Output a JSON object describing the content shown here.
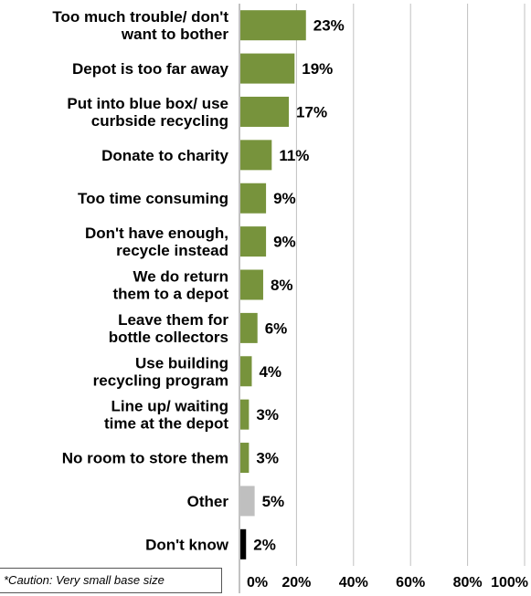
{
  "chart_data": {
    "type": "bar",
    "orientation": "horizontal",
    "categories": [
      [
        "Too much trouble/ don't",
        "want to bother"
      ],
      [
        "Depot is too far away"
      ],
      [
        "Put into blue box/ use",
        "curbside recycling"
      ],
      [
        "Donate to charity"
      ],
      [
        "Too time consuming"
      ],
      [
        "Don't have enough,",
        "recycle instead"
      ],
      [
        "We do return",
        "them to a depot"
      ],
      [
        "Leave them for",
        "bottle collectors"
      ],
      [
        "Use building",
        "recycling program"
      ],
      [
        "Line up/ waiting",
        "time at the depot"
      ],
      [
        "No room to store them"
      ],
      [
        "Other"
      ],
      [
        "Don't know"
      ]
    ],
    "values": [
      23,
      19,
      17,
      11,
      9,
      9,
      8,
      6,
      4,
      3,
      3,
      5,
      2
    ],
    "value_labels": [
      "23%",
      "19%",
      "17%",
      "11%",
      "9%",
      "9%",
      "8%",
      "6%",
      "4%",
      "3%",
      "3%",
      "5%",
      "2%"
    ],
    "bar_colors": [
      "#77933c",
      "#77933c",
      "#77933c",
      "#77933c",
      "#77933c",
      "#77933c",
      "#77933c",
      "#77933c",
      "#77933c",
      "#77933c",
      "#77933c",
      "#bfbfbf",
      "#000000"
    ],
    "xlim": [
      0,
      100
    ],
    "x_ticks": [
      0,
      20,
      40,
      60,
      80,
      100
    ],
    "x_tick_labels": [
      "0%",
      "20%",
      "40%",
      "60%",
      "80%",
      "100%"
    ],
    "grid": true,
    "gridline_color": "#c0c0c0"
  },
  "footnote": "*Caution: Very small base size"
}
